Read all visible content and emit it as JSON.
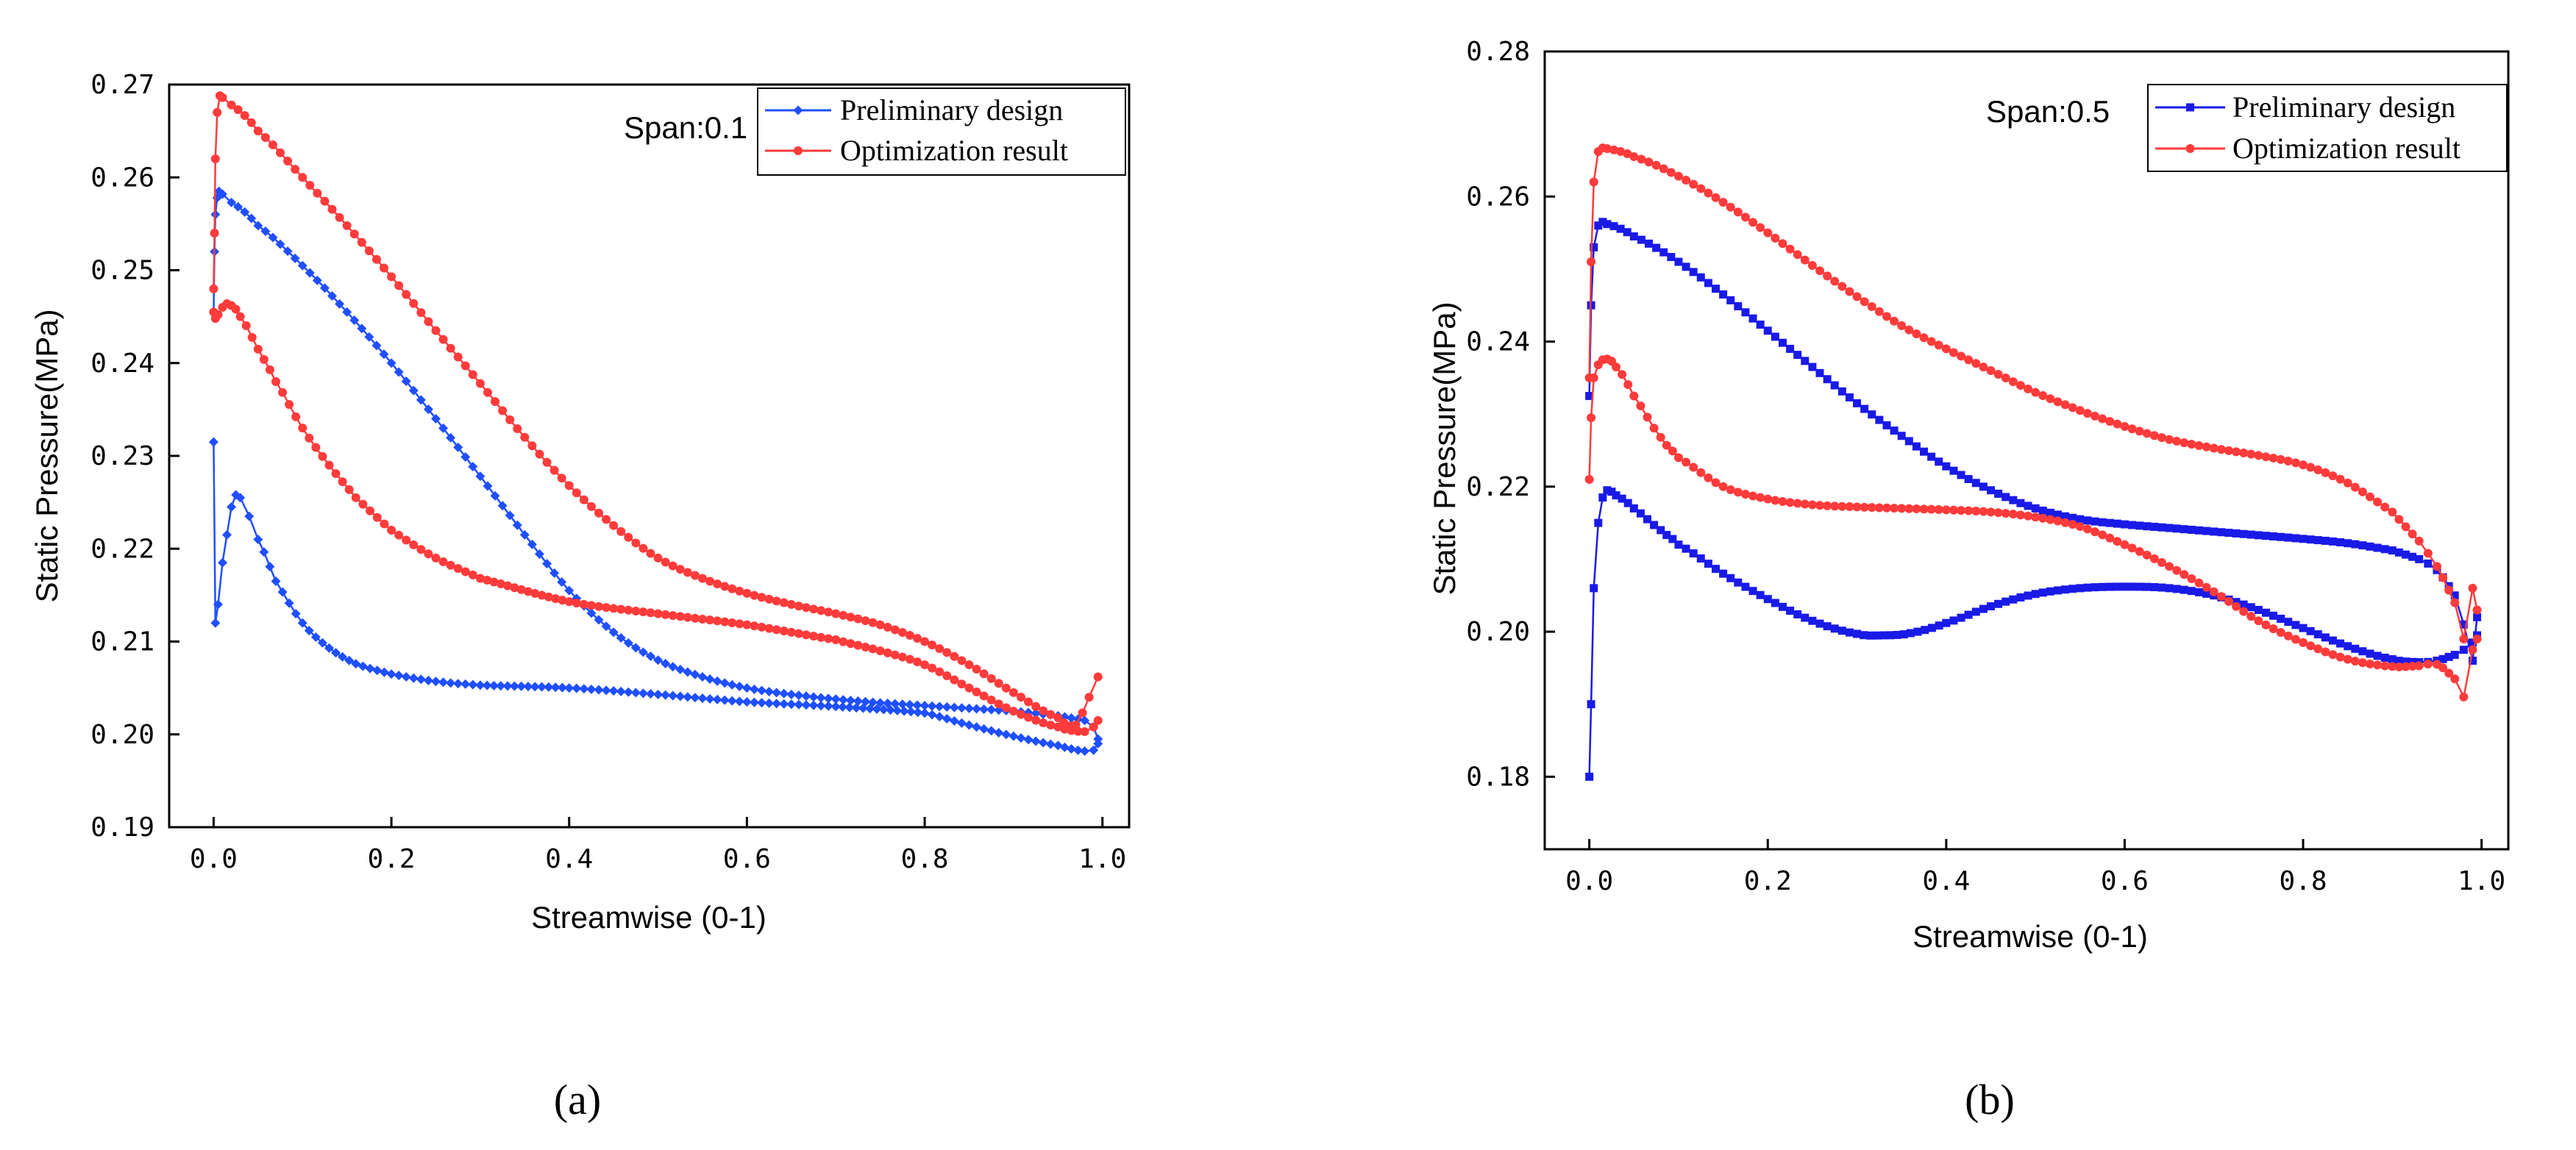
{
  "chart_data": [
    {
      "type": "line",
      "panel_label": "(a)",
      "annotation": "Span:0.1",
      "xlabel": "Streamwise (0-1)",
      "ylabel": "Static Pressure(MPa)",
      "xlim": [
        -0.05,
        1.03
      ],
      "ylim": [
        0.19,
        0.27
      ],
      "xticks": [
        0.0,
        0.2,
        0.4,
        0.6,
        0.8,
        1.0
      ],
      "xtick_labels": [
        "0.0",
        "0.2",
        "0.4",
        "0.6",
        "0.8",
        "1.0"
      ],
      "yticks": [
        0.19,
        0.2,
        0.21,
        0.22,
        0.23,
        0.24,
        0.25,
        0.26,
        0.27
      ],
      "ytick_labels": [
        "0.19",
        "0.20",
        "0.21",
        "0.22",
        "0.23",
        "0.24",
        "0.25",
        "0.26",
        "0.27"
      ],
      "series": [
        {
          "name": "Preliminary design",
          "color": "#1f4fff",
          "marker": "diamond",
          "segments": [
            {
              "x": [
                0.0,
                0.001,
                0.002,
                0.004,
                0.006,
                0.01,
                0.02,
                0.05,
                0.1,
                0.15,
                0.2,
                0.25,
                0.3,
                0.35,
                0.4,
                0.45,
                0.5,
                0.55,
                0.6,
                0.65,
                0.7,
                0.75,
                0.8,
                0.85,
                0.9,
                0.95,
                0.98,
                0.99,
                0.995
              ],
              "y": [
                0.2455,
                0.252,
                0.256,
                0.2578,
                0.2585,
                0.2582,
                0.2573,
                0.2548,
                0.2505,
                0.2455,
                0.24,
                0.234,
                0.2278,
                0.2215,
                0.2155,
                0.211,
                0.208,
                0.2062,
                0.205,
                0.2043,
                0.2038,
                0.2034,
                0.2031,
                0.2028,
                0.2025,
                0.202,
                0.2015,
                0.2008,
                0.1995
              ]
            },
            {
              "x": [
                0.0,
                0.002,
                0.005,
                0.01,
                0.015,
                0.02,
                0.025,
                0.03,
                0.04,
                0.05,
                0.07,
                0.1,
                0.13,
                0.16,
                0.2,
                0.25,
                0.3,
                0.4,
                0.5,
                0.6,
                0.7,
                0.8,
                0.85,
                0.9,
                0.95,
                0.98,
                0.99,
                0.995
              ],
              "y": [
                0.2315,
                0.212,
                0.214,
                0.2185,
                0.2215,
                0.2245,
                0.2258,
                0.2255,
                0.2235,
                0.221,
                0.2165,
                0.212,
                0.2093,
                0.2076,
                0.2065,
                0.2057,
                0.2053,
                0.205,
                0.2043,
                0.2035,
                0.203,
                0.2023,
                0.201,
                0.1998,
                0.1988,
                0.1982,
                0.1983,
                0.199
              ]
            }
          ]
        },
        {
          "name": "Optimization result",
          "color": "#ff3b3b",
          "marker": "circle",
          "segments": [
            {
              "x": [
                0.0,
                0.001,
                0.002,
                0.004,
                0.007,
                0.01,
                0.02,
                0.05,
                0.1,
                0.15,
                0.2,
                0.25,
                0.3,
                0.35,
                0.4,
                0.45,
                0.5,
                0.55,
                0.6,
                0.65,
                0.7,
                0.75,
                0.8,
                0.85,
                0.9,
                0.95,
                0.97,
                0.985,
                0.995
              ],
              "y": [
                0.248,
                0.254,
                0.262,
                0.267,
                0.2688,
                0.2686,
                0.2678,
                0.265,
                0.26,
                0.2548,
                0.2493,
                0.2435,
                0.2378,
                0.232,
                0.2268,
                0.2225,
                0.219,
                0.2168,
                0.2152,
                0.214,
                0.213,
                0.2118,
                0.21,
                0.2075,
                0.2045,
                0.2018,
                0.201,
                0.204,
                0.2062
              ]
            },
            {
              "x": [
                0.0,
                0.002,
                0.005,
                0.01,
                0.015,
                0.02,
                0.025,
                0.03,
                0.05,
                0.07,
                0.1,
                0.13,
                0.16,
                0.2,
                0.25,
                0.3,
                0.4,
                0.5,
                0.6,
                0.7,
                0.75,
                0.8,
                0.85,
                0.9,
                0.95,
                0.98,
                0.99,
                0.995
              ],
              "y": [
                0.2455,
                0.2448,
                0.2452,
                0.246,
                0.2464,
                0.2462,
                0.2458,
                0.245,
                0.2415,
                0.238,
                0.233,
                0.229,
                0.2255,
                0.222,
                0.219,
                0.2168,
                0.2143,
                0.213,
                0.2118,
                0.2102,
                0.209,
                0.2075,
                0.205,
                0.2025,
                0.2008,
                0.2003,
                0.2008,
                0.2015
              ]
            }
          ]
        }
      ]
    },
    {
      "type": "line",
      "panel_label": "(b)",
      "annotation": "Span:0.5",
      "xlabel": "Streamwise (0-1)",
      "ylabel": "Static Pressure(MPa)",
      "xlim": [
        -0.05,
        1.03
      ],
      "ylim": [
        0.17,
        0.28
      ],
      "xticks": [
        0.0,
        0.2,
        0.4,
        0.6,
        0.8,
        1.0
      ],
      "xtick_labels": [
        "0.0",
        "0.2",
        "0.4",
        "0.6",
        "0.8",
        "1.0"
      ],
      "yticks": [
        0.18,
        0.2,
        0.22,
        0.24,
        0.26,
        0.28
      ],
      "ytick_labels": [
        "0.18",
        "0.20",
        "0.22",
        "0.24",
        "0.26",
        "0.28"
      ],
      "series": [
        {
          "name": "Preliminary design",
          "color": "#1a1ae6",
          "marker": "square",
          "segments": [
            {
              "x": [
                0.0,
                0.002,
                0.005,
                0.01,
                0.015,
                0.02,
                0.05,
                0.1,
                0.15,
                0.2,
                0.25,
                0.3,
                0.35,
                0.4,
                0.45,
                0.5,
                0.55,
                0.6,
                0.65,
                0.7,
                0.75,
                0.8,
                0.85,
                0.9,
                0.93,
                0.95,
                0.97,
                0.98,
                0.99,
                0.995
              ],
              "y": [
                0.2325,
                0.245,
                0.253,
                0.256,
                0.2565,
                0.2562,
                0.2545,
                0.251,
                0.2465,
                0.2415,
                0.2365,
                0.2315,
                0.227,
                0.2228,
                0.2195,
                0.217,
                0.2155,
                0.2148,
                0.2143,
                0.2138,
                0.2133,
                0.2128,
                0.2122,
                0.2112,
                0.21,
                0.2085,
                0.205,
                0.201,
                0.196,
                0.202
              ]
            },
            {
              "x": [
                0.0,
                0.002,
                0.005,
                0.01,
                0.015,
                0.02,
                0.025,
                0.03,
                0.05,
                0.08,
                0.1,
                0.15,
                0.2,
                0.25,
                0.3,
                0.33,
                0.36,
                0.4,
                0.45,
                0.5,
                0.55,
                0.6,
                0.65,
                0.7,
                0.75,
                0.8,
                0.85,
                0.9,
                0.93,
                0.95,
                0.97,
                0.98,
                0.99,
                0.995
              ],
              "y": [
                0.18,
                0.19,
                0.206,
                0.215,
                0.2185,
                0.2195,
                0.2193,
                0.2188,
                0.217,
                0.214,
                0.212,
                0.208,
                0.2045,
                0.2015,
                0.1997,
                0.1995,
                0.1998,
                0.2012,
                0.2035,
                0.2052,
                0.206,
                0.2062,
                0.206,
                0.205,
                0.203,
                0.2005,
                0.198,
                0.1962,
                0.1958,
                0.196,
                0.1968,
                0.1975,
                0.1985,
                0.1995
              ]
            }
          ]
        },
        {
          "name": "Optimization result",
          "color": "#ff3b3b",
          "marker": "circle",
          "segments": [
            {
              "x": [
                0.0,
                0.002,
                0.005,
                0.01,
                0.015,
                0.02,
                0.05,
                0.1,
                0.15,
                0.2,
                0.25,
                0.3,
                0.35,
                0.4,
                0.45,
                0.5,
                0.55,
                0.6,
                0.65,
                0.7,
                0.75,
                0.8,
                0.85,
                0.9,
                0.93,
                0.95,
                0.97,
                0.98,
                0.99,
                0.995
              ],
              "y": [
                0.235,
                0.251,
                0.262,
                0.2662,
                0.2667,
                0.2666,
                0.2655,
                0.2628,
                0.2592,
                0.255,
                0.2505,
                0.2462,
                0.2422,
                0.239,
                0.236,
                0.233,
                0.2305,
                0.2283,
                0.2265,
                0.2253,
                0.2243,
                0.223,
                0.2205,
                0.2165,
                0.2125,
                0.209,
                0.204,
                0.199,
                0.206,
                0.203
              ]
            },
            {
              "x": [
                0.0,
                0.002,
                0.005,
                0.01,
                0.015,
                0.02,
                0.025,
                0.03,
                0.05,
                0.08,
                0.1,
                0.15,
                0.2,
                0.25,
                0.3,
                0.35,
                0.4,
                0.45,
                0.5,
                0.55,
                0.6,
                0.65,
                0.7,
                0.75,
                0.8,
                0.85,
                0.9,
                0.93,
                0.95,
                0.97,
                0.98,
                0.99,
                0.995
              ],
              "y": [
                0.221,
                0.2295,
                0.235,
                0.2368,
                0.2375,
                0.2376,
                0.2373,
                0.2365,
                0.2325,
                0.2268,
                0.224,
                0.22,
                0.2183,
                0.2175,
                0.2172,
                0.217,
                0.2168,
                0.2165,
                0.2158,
                0.2145,
                0.212,
                0.209,
                0.2055,
                0.2015,
                0.1985,
                0.1962,
                0.1952,
                0.1953,
                0.1955,
                0.1935,
                0.191,
                0.1975,
                0.199
              ]
            }
          ]
        }
      ]
    }
  ]
}
